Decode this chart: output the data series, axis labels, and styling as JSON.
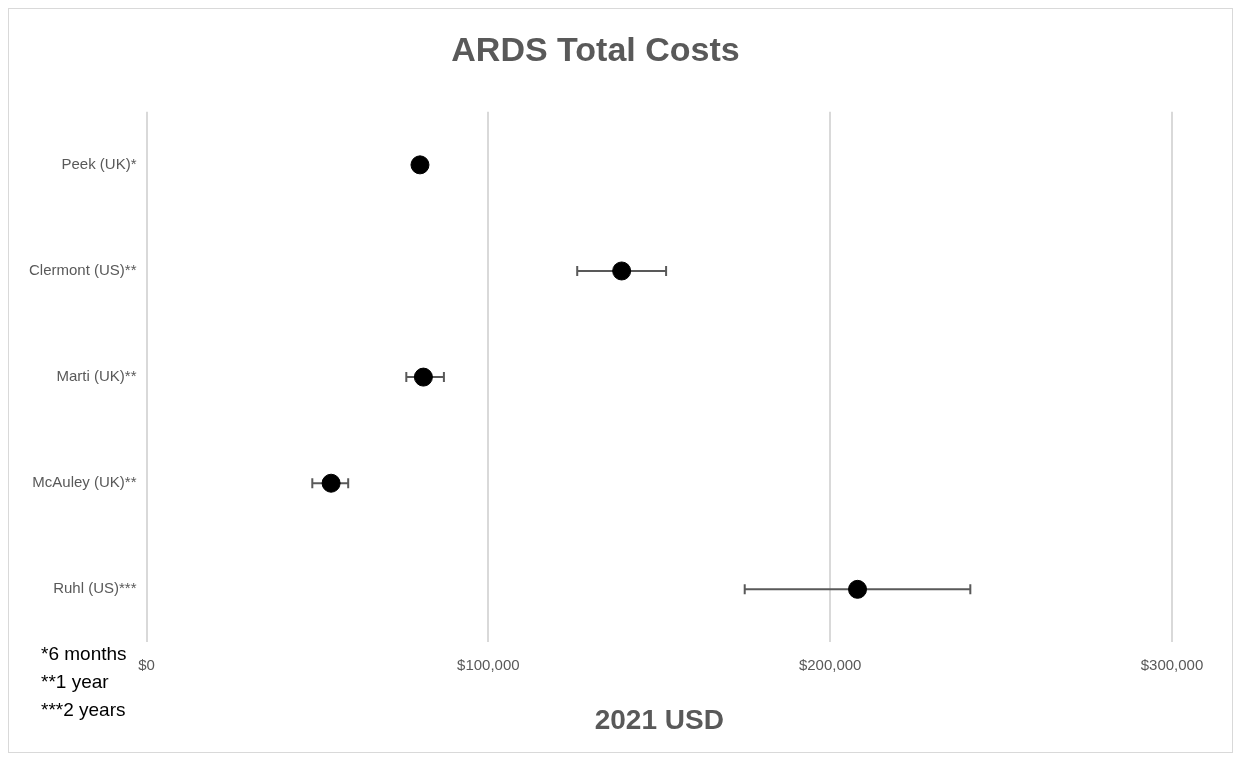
{
  "chart_data": {
    "type": "scatter",
    "title": "ARDS Total Costs",
    "xlabel": "2021 USD",
    "orientation": "horizontal",
    "categories": [
      "Peek (UK)*",
      "Clermont (US)**",
      "Marti (UK)**",
      "McAuley (UK)**",
      "Ruhl (US)***"
    ],
    "series": [
      {
        "color": "#000000",
        "values": [
          80000,
          139000,
          81000,
          54000,
          208000
        ],
        "errors": [
          null,
          [
            126000,
            152000
          ],
          [
            76000,
            87000
          ],
          [
            48500,
            59000
          ],
          [
            175000,
            241000
          ]
        ]
      }
    ],
    "xlim": [
      0,
      300000
    ],
    "xticks": [
      {
        "value": 0,
        "label": "$0"
      },
      {
        "value": 100000,
        "label": "$100,000"
      },
      {
        "value": 200000,
        "label": "$200,000"
      },
      {
        "value": 300000,
        "label": "$300,000"
      }
    ],
    "grid": "x",
    "legend": false,
    "marker": "circle",
    "annotations": [
      "*6 months",
      "**1 year",
      "***2 years"
    ]
  }
}
